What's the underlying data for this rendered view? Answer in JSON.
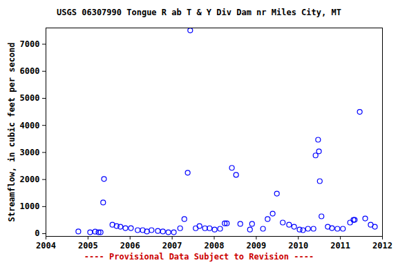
{
  "chart_data": {
    "type": "scatter",
    "title": "USGS 06307990 Tongue R ab T & Y Div Dam nr Miles City, MT",
    "y_label": "Streamflow, in cubic feet per second",
    "annotations": [
      "---- Provisional Data Subject to Revision ----"
    ],
    "color": "#0000ff",
    "marker": "circle",
    "grid": false,
    "x": [
      2004.77,
      2005.05,
      2005.17,
      2005.25,
      2005.3,
      2005.36,
      2005.38,
      2005.58,
      2005.68,
      2005.77,
      2005.89,
      2006.02,
      2006.18,
      2006.3,
      2006.4,
      2006.51,
      2006.66,
      2006.78,
      2006.91,
      2007.04,
      2007.19,
      2007.29,
      2007.37,
      2007.43,
      2007.56,
      2007.65,
      2007.78,
      2007.89,
      2008.01,
      2008.14,
      2008.25,
      2008.3,
      2008.42,
      2008.52,
      2008.62,
      2008.85,
      2008.9,
      2009.16,
      2009.27,
      2009.39,
      2009.49,
      2009.63,
      2009.78,
      2009.9,
      2010.03,
      2010.11,
      2010.23,
      2010.36,
      2010.41,
      2010.47,
      2010.49,
      2010.51,
      2010.55,
      2010.7,
      2010.8,
      2010.93,
      2011.06,
      2011.23,
      2011.31,
      2011.34,
      2011.46,
      2011.59,
      2011.72,
      2011.82
    ],
    "values": [
      80,
      50,
      75,
      50,
      50,
      1150,
      2020,
      330,
      280,
      255,
      205,
      205,
      130,
      130,
      80,
      130,
      100,
      80,
      50,
      50,
      200,
      540,
      2250,
      7510,
      200,
      280,
      200,
      200,
      150,
      180,
      380,
      380,
      2430,
      2170,
      360,
      150,
      360,
      180,
      540,
      740,
      1480,
      410,
      330,
      255,
      150,
      130,
      180,
      180,
      2890,
      3470,
      3040,
      1940,
      640,
      255,
      205,
      180,
      180,
      410,
      510,
      510,
      4500,
      560,
      330,
      255
    ],
    "xlim": [
      2004,
      2012
    ],
    "xticks": [
      2004,
      2005,
      2006,
      2007,
      2008,
      2009,
      2010,
      2011,
      2012
    ],
    "ylim": [
      -100,
      7600
    ],
    "yticks": [
      0,
      1000,
      2000,
      3000,
      4000,
      5000,
      6000,
      7000
    ]
  }
}
